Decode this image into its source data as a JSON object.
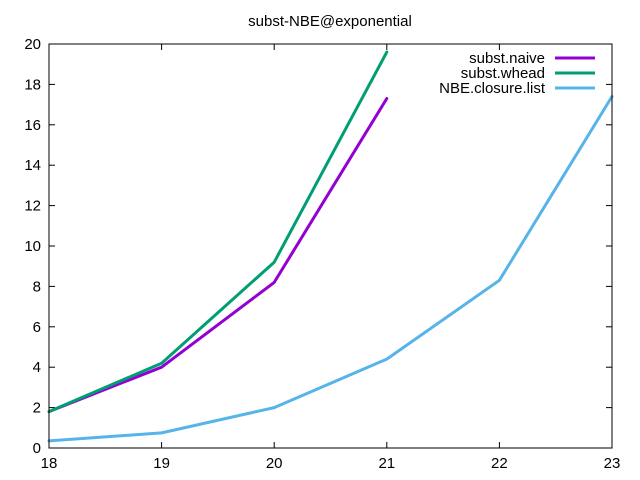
{
  "chart_data": {
    "type": "line",
    "title": "subst-NBE@exponential",
    "xlabel": "",
    "ylabel": "",
    "xlim": [
      18,
      23
    ],
    "ylim": [
      0,
      20
    ],
    "xticks": [
      18,
      19,
      20,
      21,
      22,
      23
    ],
    "yticks": [
      0,
      2,
      4,
      6,
      8,
      10,
      12,
      14,
      16,
      18,
      20
    ],
    "grid": false,
    "legend_position": "top-right",
    "series": [
      {
        "name": "subst.naive",
        "color": "#9400d3",
        "x": [
          18,
          19,
          20,
          21
        ],
        "y": [
          1.8,
          4.0,
          8.2,
          17.3
        ]
      },
      {
        "name": "subst.whead",
        "color": "#009e73",
        "x": [
          18,
          19,
          20,
          21
        ],
        "y": [
          1.8,
          4.2,
          9.2,
          19.6
        ]
      },
      {
        "name": "NBE.closure.list",
        "color": "#56b4e9",
        "x": [
          18,
          19,
          20,
          21,
          22,
          23
        ],
        "y": [
          0.35,
          0.75,
          2.0,
          4.4,
          8.3,
          17.4
        ]
      }
    ]
  }
}
